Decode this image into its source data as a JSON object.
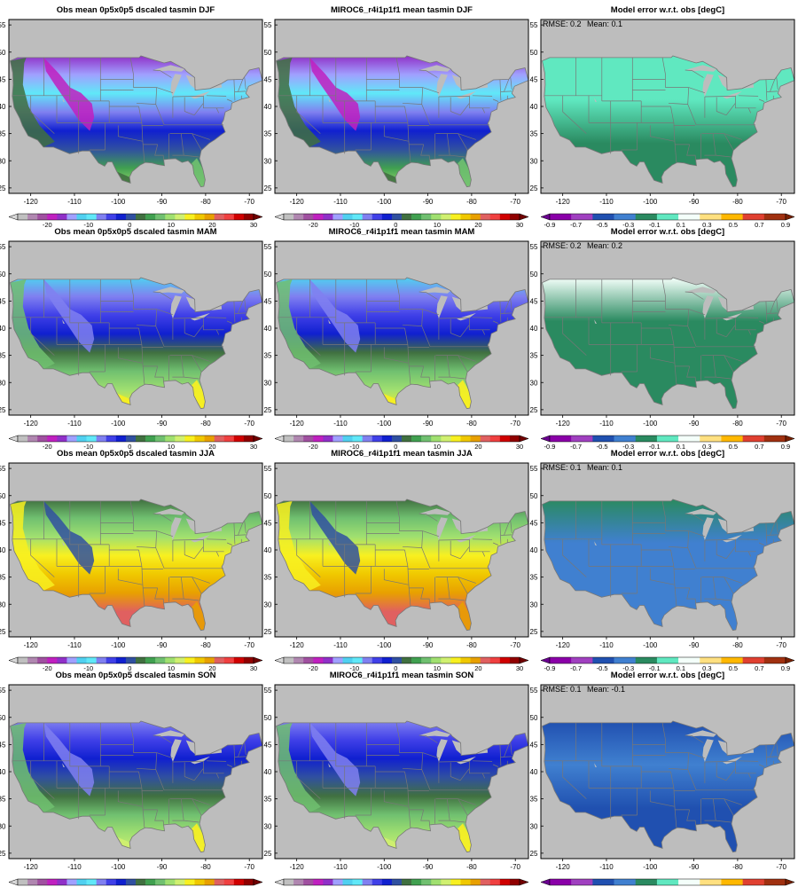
{
  "figure": {
    "rows": [
      {
        "season": "DJF",
        "obs_title": "Obs mean 0p5x0p5 dscaled tasmin DJF",
        "model_title": "MIROC6_r4i1p1f1 mean tasmin DJF",
        "error_title": "Model error w.r.t. obs [degC]",
        "rmse_label": "RMSE: 0.2",
        "mean_label": "Mean: 0.1",
        "error_levels": {
          "north": 5,
          "center": 5,
          "south": 4
        }
      },
      {
        "season": "MAM",
        "obs_title": "Obs mean 0p5x0p5 dscaled tasmin MAM",
        "model_title": "MIROC6_r4i1p1f1 mean tasmin MAM",
        "error_title": "Model error w.r.t. obs [degC]",
        "rmse_label": "RMSE: 0.2",
        "mean_label": "Mean: 0.2",
        "error_levels": {
          "north": 6,
          "center": 4,
          "south": 4
        }
      },
      {
        "season": "JJA",
        "obs_title": "Obs mean 0p5x0p5 dscaled tasmin JJA",
        "model_title": "MIROC6_r4i1p1f1 mean tasmin JJA",
        "error_title": "Model error w.r.t. obs [degC]",
        "rmse_label": "RMSE: 0.1",
        "mean_label": "Mean: 0.1",
        "error_levels": {
          "north": 4,
          "center": 3,
          "south": 3
        }
      },
      {
        "season": "SON",
        "obs_title": "Obs mean 0p5x0p5 dscaled tasmin SON",
        "model_title": "MIROC6_r4i1p1f1 mean tasmin SON",
        "error_title": "Model error w.r.t. obs [degC]",
        "rmse_label": "RMSE: 0.1",
        "mean_label": "Mean: -0.1",
        "error_levels": {
          "north": 2,
          "center": 3,
          "south": 2
        }
      }
    ],
    "lon_ticks": [
      "-120",
      "-110",
      "-100",
      "-90",
      "-80",
      "-70"
    ],
    "lat_ticks": [
      "25",
      "30",
      "35",
      "40",
      "45",
      "50",
      "55"
    ],
    "temp_colorbar": {
      "labels": [
        "-20",
        "-10",
        "0",
        "10",
        "20",
        "30"
      ],
      "colors": [
        "#c0c0c0",
        "#b087b0",
        "#a050a0",
        "#c020c0",
        "#9030c8",
        "#a0a0ff",
        "#50d0f0",
        "#60e8f8",
        "#8080f0",
        "#4040e8",
        "#1020d0",
        "#3050a0",
        "#407040",
        "#40a050",
        "#70c070",
        "#a0e070",
        "#d0f070",
        "#f8f020",
        "#f0c800",
        "#e8a000",
        "#e06060",
        "#f04040",
        "#d00000",
        "#900000"
      ],
      "under_color": "#d8d8d8",
      "over_color": "#700000"
    },
    "error_colorbar": {
      "labels": [
        "-0.9",
        "-0.7",
        "-0.5",
        "-0.3",
        "-0.1",
        "0.1",
        "0.3",
        "0.5",
        "0.7",
        "0.9"
      ],
      "colors": [
        "#8a00a8",
        "#a040c0",
        "#2050b0",
        "#4080d0",
        "#2a8a60",
        "#60e8c0",
        "#f4fffa",
        "#ffe080",
        "#ffb800",
        "#e04030",
        "#a03010"
      ],
      "under_color": "#6a0090",
      "over_color": "#7a2000"
    },
    "map_colors": {
      "ocean": "#bdbdbd",
      "land_fill": "#ffffff",
      "border": "#777777",
      "lakes": "#bdbdbd"
    }
  }
}
